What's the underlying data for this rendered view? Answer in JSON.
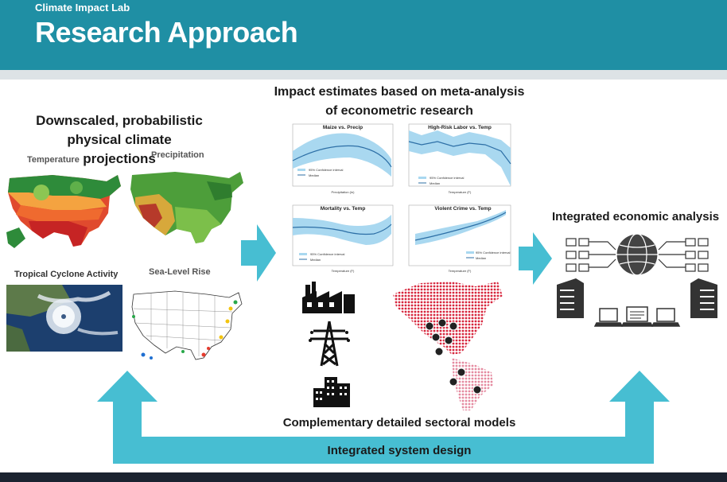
{
  "header": {
    "org": "Climate Impact Lab",
    "title": "Research Approach"
  },
  "left": {
    "heading_line1": "Downscaled, probabilistic",
    "heading_line2": "physical climate projections",
    "maps": [
      {
        "label": "Temperature"
      },
      {
        "label": "Precipitation"
      },
      {
        "label": "Tropical Cyclone Activity"
      },
      {
        "label": "Sea-Level Rise"
      }
    ]
  },
  "center": {
    "heading_line1": "Impact estimates based on meta-analysis",
    "heading_line2": "of econometric research",
    "graphs": [
      {
        "title": "Maize vs. Precip",
        "legend1": "95% Confidence interval",
        "legend2": "Median",
        "xlabel": "Precipitation (in)"
      },
      {
        "title": "High-Risk Labor vs. Temp",
        "legend1": "95% Confidence interval",
        "legend2": "Median",
        "xlabel": "Temperature (F)"
      },
      {
        "title": "Mortality vs. Temp",
        "legend1": "95% Confidence interval",
        "legend2": "Median",
        "xlabel": "Temperature (F)"
      },
      {
        "title": "Violent Crime vs. Temp",
        "legend1": "95% Confidence interval",
        "legend2": "Median",
        "xlabel": "Temperature (F)"
      }
    ],
    "sectoral_heading": "Complementary detailed sectoral models"
  },
  "right": {
    "heading": "Integrated economic analysis"
  },
  "footer": {
    "system_label": "Integrated system design"
  },
  "colors": {
    "header": "#1f8fa4",
    "arrow": "#47bed2",
    "ci_band": "#a9d8f0",
    "median": "#2d6fa6",
    "dot_map": "#d7263d"
  },
  "icons": [
    "factory-icon",
    "power-tower-icon",
    "buildings-icon",
    "server-icon",
    "globe-network-icon",
    "laptop-icon"
  ]
}
